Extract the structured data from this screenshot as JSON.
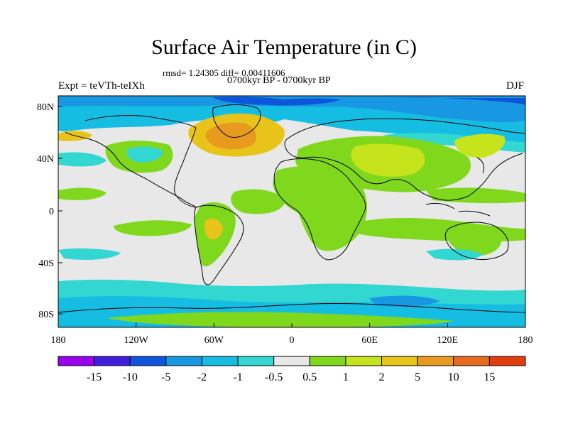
{
  "title": "Surface Air Temperature (in C)",
  "stats_line": "rmsd= 1.24305 diff= 0.00411606",
  "period_line": "0700kyr BP - 0700kyr BP",
  "left_label": "Expt = teVTh-teIXh",
  "right_label": "DJF",
  "map": {
    "lon_ticks": [
      "180",
      "120W",
      "60W",
      "0",
      "60E",
      "120E",
      "180"
    ],
    "lat_ticks": [
      "80N",
      "40N",
      "0",
      "40S",
      "80S"
    ],
    "background_color": "#e8e8e8"
  },
  "colorbar": {
    "colors": [
      "#9900ee",
      "#3f1fdd",
      "#0e55dd",
      "#1898e2",
      "#15bde2",
      "#33d7d2",
      "#e8e8e8",
      "#7fd81c",
      "#c6e41b",
      "#e8c41a",
      "#e89a1e",
      "#e86b1f",
      "#e33d0e"
    ],
    "labels": [
      "-15",
      "-10",
      "-5",
      "-2",
      "-1",
      "-0.5",
      "0.5",
      "1",
      "2",
      "5",
      "10",
      "15"
    ]
  }
}
